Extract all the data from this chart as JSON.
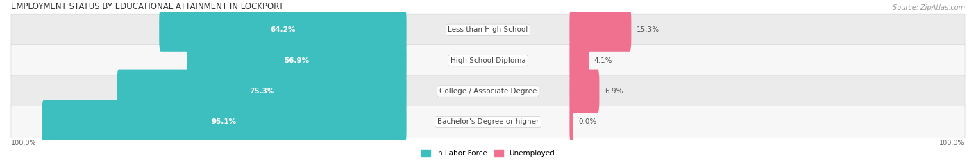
{
  "title": "EMPLOYMENT STATUS BY EDUCATIONAL ATTAINMENT IN LOCKPORT",
  "source": "Source: ZipAtlas.com",
  "categories": [
    "Less than High School",
    "High School Diploma",
    "College / Associate Degree",
    "Bachelor's Degree or higher"
  ],
  "labor_force": [
    64.2,
    56.9,
    75.3,
    95.1
  ],
  "unemployed": [
    15.3,
    4.1,
    6.9,
    0.0
  ],
  "labor_force_color": "#3DBFBF",
  "unemployed_color": "#F07090",
  "row_bg_colors": [
    "#EBEBEB",
    "#F7F7F7",
    "#EBEBEB",
    "#F7F7F7"
  ],
  "title_fontsize": 8.5,
  "label_fontsize": 7.5,
  "axis_label_fontsize": 7,
  "source_fontsize": 7,
  "legend_fontsize": 7.5,
  "bar_height": 0.62,
  "lf_inside_threshold": 10,
  "unemp_inside_threshold": 3
}
